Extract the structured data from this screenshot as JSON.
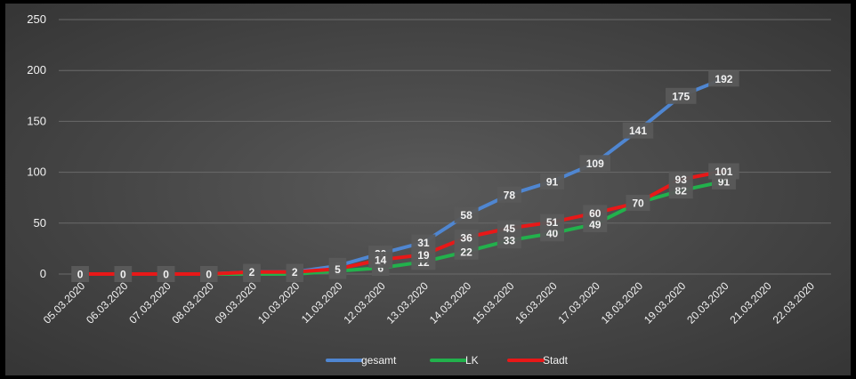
{
  "chart_data": {
    "type": "line",
    "title": "",
    "xlabel": "",
    "ylabel": "",
    "ylim": [
      0,
      250
    ],
    "yticks": [
      0,
      50,
      100,
      150,
      200,
      250
    ],
    "grid": "horizontal",
    "legend_position": "bottom",
    "categories": [
      "05.03.2020",
      "06.03.2020",
      "07.03.2020",
      "08.03.2020",
      "09.03.2020",
      "10.03.2020",
      "11.03.2020",
      "12.03.2020",
      "13.03.2020",
      "14.03.2020",
      "15.03.2020",
      "16.03.2020",
      "17.03.2020",
      "18.03.2020",
      "19.03.2020",
      "20.03.2020",
      "21.03.2020",
      "22.03.2020"
    ],
    "series": [
      {
        "name": "gesamt",
        "color": "#4f86d1",
        "values": [
          0,
          0,
          0,
          0,
          2,
          2,
          8,
          20,
          31,
          58,
          78,
          91,
          109,
          141,
          175,
          192,
          null,
          null
        ]
      },
      {
        "name": "LK",
        "color": "#22b14c",
        "values": [
          0,
          0,
          0,
          0,
          0,
          0,
          3,
          6,
          12,
          22,
          33,
          40,
          49,
          70,
          82,
          91,
          null,
          null
        ]
      },
      {
        "name": "Stadt",
        "color": "#e81818",
        "values": [
          0,
          0,
          0,
          0,
          2,
          2,
          5,
          14,
          19,
          36,
          45,
          51,
          60,
          70,
          93,
          101,
          null,
          null
        ]
      }
    ]
  }
}
